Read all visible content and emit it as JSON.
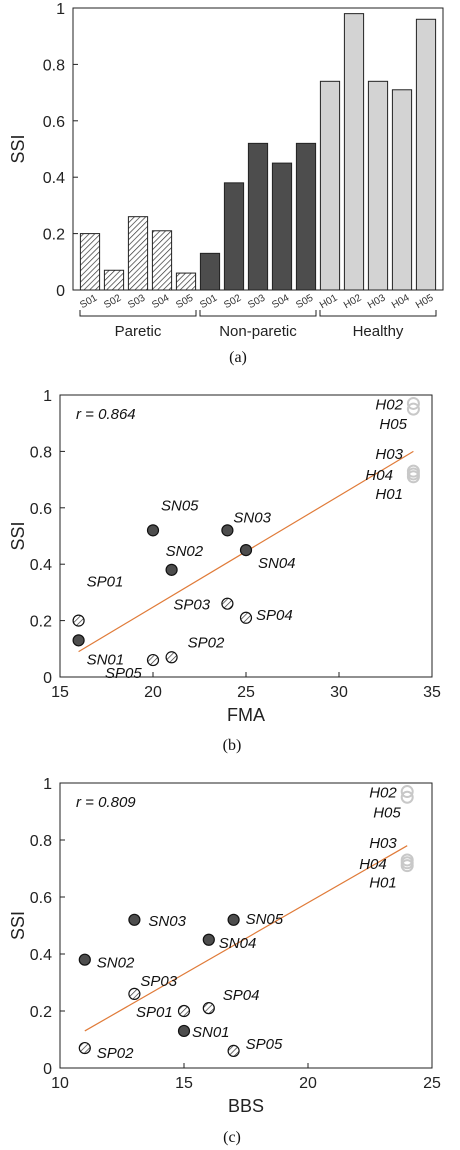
{
  "chart_data": [
    {
      "type": "bar",
      "caption": "(a)",
      "ylabel": "SSI",
      "ylim": [
        0,
        1
      ],
      "yticks": [
        "0",
        "0.2",
        "0.4",
        "0.6",
        "0.8",
        "1"
      ],
      "groups": [
        {
          "label": "Paretic",
          "fill": "#ffffff",
          "pattern": "hatch",
          "categories": [
            "S01",
            "S02",
            "S03",
            "S04",
            "S05"
          ],
          "values": [
            0.2,
            0.07,
            0.26,
            0.21,
            0.06
          ]
        },
        {
          "label": "Non-paretic",
          "fill": "#4d4d4d",
          "pattern": "solid",
          "categories": [
            "S01",
            "S02",
            "S03",
            "S04",
            "S05"
          ],
          "values": [
            0.13,
            0.38,
            0.52,
            0.45,
            0.52
          ]
        },
        {
          "label": "Healthy",
          "fill": "#d3d3d3",
          "pattern": "solid",
          "categories": [
            "H01",
            "H02",
            "H03",
            "H04",
            "H05"
          ],
          "values": [
            0.74,
            0.98,
            0.74,
            0.71,
            0.96
          ]
        }
      ]
    },
    {
      "type": "scatter",
      "caption": "(b)",
      "xlabel": "FMA",
      "ylabel": "SSI",
      "xlim": [
        15,
        35
      ],
      "ylim": [
        0,
        1
      ],
      "xticks": [
        "15",
        "20",
        "25",
        "30",
        "35"
      ],
      "yticks": [
        "0",
        "0.2",
        "0.4",
        "0.6",
        "0.8",
        "1"
      ],
      "annotation": "r = 0.864",
      "fit_line": {
        "x": [
          16,
          34
        ],
        "y": [
          0.09,
          0.8
        ],
        "color": "#e07b39"
      },
      "points": [
        {
          "label": "SP01",
          "x": 16,
          "y": 0.2,
          "style": "hatch",
          "lab_dx": 8,
          "lab_dy": -34
        },
        {
          "label": "SN01",
          "x": 16,
          "y": 0.13,
          "style": "dark",
          "lab_dx": 8,
          "lab_dy": 24
        },
        {
          "label": "SP05",
          "x": 20,
          "y": 0.06,
          "style": "hatch",
          "lab_dx": -48,
          "lab_dy": 18
        },
        {
          "label": "SP02",
          "x": 21,
          "y": 0.07,
          "style": "hatch",
          "lab_dx": 16,
          "lab_dy": -10
        },
        {
          "label": "SN05",
          "x": 20,
          "y": 0.52,
          "style": "dark",
          "lab_dx": 8,
          "lab_dy": -20
        },
        {
          "label": "SN02",
          "x": 21,
          "y": 0.38,
          "style": "dark",
          "lab_dx": -6,
          "lab_dy": -14
        },
        {
          "label": "SN03",
          "x": 24,
          "y": 0.52,
          "style": "dark",
          "lab_dx": 6,
          "lab_dy": -8
        },
        {
          "label": "SN04",
          "x": 25,
          "y": 0.45,
          "style": "dark",
          "lab_dx": 12,
          "lab_dy": 18
        },
        {
          "label": "SP03",
          "x": 24,
          "y": 0.26,
          "style": "hatch",
          "lab_dx": -54,
          "lab_dy": 6
        },
        {
          "label": "SP04",
          "x": 25,
          "y": 0.21,
          "style": "hatch",
          "lab_dx": 10,
          "lab_dy": 2
        },
        {
          "label": "H02",
          "x": 34,
          "y": 0.97,
          "style": "light",
          "lab_dx": -38,
          "lab_dy": 6
        },
        {
          "label": "H05",
          "x": 34,
          "y": 0.95,
          "style": "light",
          "lab_dx": -34,
          "lab_dy": 20
        },
        {
          "label": "H03",
          "x": 34,
          "y": 0.73,
          "style": "light",
          "lab_dx": -38,
          "lab_dy": -12
        },
        {
          "label": "H04",
          "x": 34,
          "y": 0.72,
          "style": "light",
          "lab_dx": -48,
          "lab_dy": 6
        },
        {
          "label": "H01",
          "x": 34,
          "y": 0.71,
          "style": "light",
          "lab_dx": -38,
          "lab_dy": 22
        }
      ]
    },
    {
      "type": "scatter",
      "caption": "(c)",
      "xlabel": "BBS",
      "ylabel": "SSI",
      "xlim": [
        10,
        25
      ],
      "ylim": [
        0,
        1
      ],
      "xticks": [
        "10",
        "15",
        "20",
        "25"
      ],
      "yticks": [
        "0",
        "0.2",
        "0.4",
        "0.6",
        "0.8",
        "1"
      ],
      "annotation": "r = 0.809",
      "fit_line": {
        "x": [
          11,
          24
        ],
        "y": [
          0.13,
          0.78
        ],
        "color": "#e07b39"
      },
      "points": [
        {
          "label": "SN03",
          "x": 13,
          "y": 0.52,
          "style": "dark",
          "lab_dx": 14,
          "lab_dy": 6
        },
        {
          "label": "SN05",
          "x": 17,
          "y": 0.52,
          "style": "dark",
          "lab_dx": 12,
          "lab_dy": 4
        },
        {
          "label": "SN04",
          "x": 16,
          "y": 0.45,
          "style": "dark",
          "lab_dx": 10,
          "lab_dy": 8
        },
        {
          "label": "SN02",
          "x": 11,
          "y": 0.38,
          "style": "dark",
          "lab_dx": 12,
          "lab_dy": 8
        },
        {
          "label": "SP03",
          "x": 13,
          "y": 0.26,
          "style": "hatch",
          "lab_dx": 6,
          "lab_dy": -8
        },
        {
          "label": "SP04",
          "x": 16,
          "y": 0.21,
          "style": "hatch",
          "lab_dx": 14,
          "lab_dy": -8
        },
        {
          "label": "SP01",
          "x": 15,
          "y": 0.2,
          "style": "hatch",
          "lab_dx": -48,
          "lab_dy": 6
        },
        {
          "label": "SN01",
          "x": 15,
          "y": 0.13,
          "style": "dark",
          "lab_dx": 8,
          "lab_dy": 6
        },
        {
          "label": "SP02",
          "x": 11,
          "y": 0.07,
          "style": "hatch",
          "lab_dx": 12,
          "lab_dy": 10
        },
        {
          "label": "SP05",
          "x": 17,
          "y": 0.06,
          "style": "hatch",
          "lab_dx": 12,
          "lab_dy": -2
        },
        {
          "label": "H02",
          "x": 24,
          "y": 0.97,
          "style": "light",
          "lab_dx": -38,
          "lab_dy": 6
        },
        {
          "label": "H05",
          "x": 24,
          "y": 0.95,
          "style": "light",
          "lab_dx": -34,
          "lab_dy": 20
        },
        {
          "label": "H03",
          "x": 24,
          "y": 0.73,
          "style": "light",
          "lab_dx": -38,
          "lab_dy": -12
        },
        {
          "label": "H04",
          "x": 24,
          "y": 0.72,
          "style": "light",
          "lab_dx": -48,
          "lab_dy": 6
        },
        {
          "label": "H01",
          "x": 24,
          "y": 0.71,
          "style": "light",
          "lab_dx": -38,
          "lab_dy": 22
        }
      ]
    }
  ]
}
